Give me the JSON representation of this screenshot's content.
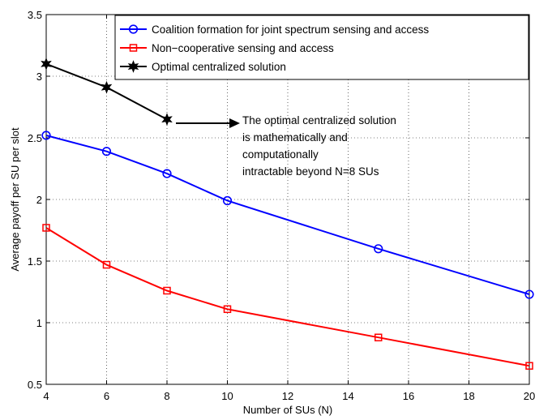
{
  "chart_data": {
    "type": "line",
    "title": "",
    "xlabel": "Number of SUs (N)",
    "ylabel": "Average payoff per SU per slot",
    "xlim": [
      4,
      20
    ],
    "ylim": [
      0.5,
      3.5
    ],
    "xticks": [
      4,
      6,
      8,
      10,
      12,
      14,
      16,
      18,
      20
    ],
    "yticks": [
      0.5,
      1,
      1.5,
      2,
      2.5,
      3,
      3.5
    ],
    "xtick_labels": [
      "4",
      "6",
      "8",
      "10",
      "12",
      "14",
      "16",
      "18",
      "20"
    ],
    "ytick_labels": [
      "0.5",
      "1",
      "1.5",
      "2",
      "2.5",
      "3",
      "3.5"
    ],
    "grid": true,
    "legend_position": "top-right",
    "series": [
      {
        "name": "Coalition formation for joint  spectrum sensing and access",
        "color": "#0000ff",
        "marker": "circle",
        "x": [
          4,
          6,
          8,
          10,
          15,
          20
        ],
        "y": [
          2.52,
          2.39,
          2.21,
          1.99,
          1.6,
          1.23
        ]
      },
      {
        "name": "Non−cooperative sensing and access",
        "color": "#ff0000",
        "marker": "square",
        "x": [
          4,
          6,
          8,
          10,
          15,
          20
        ],
        "y": [
          1.77,
          1.47,
          1.26,
          1.11,
          0.88,
          0.65
        ]
      },
      {
        "name": "Optimal centralized solution",
        "color": "#000000",
        "marker": "hexagram",
        "x": [
          4,
          6,
          8
        ],
        "y": [
          3.1,
          2.91,
          2.65
        ]
      }
    ],
    "annotation": {
      "lines": [
        "The optimal centralized solution",
        "is mathematically and",
        "computationally",
        "intractable beyond N=8 SUs"
      ],
      "arrow_from": [
        8,
        2.65
      ]
    }
  }
}
